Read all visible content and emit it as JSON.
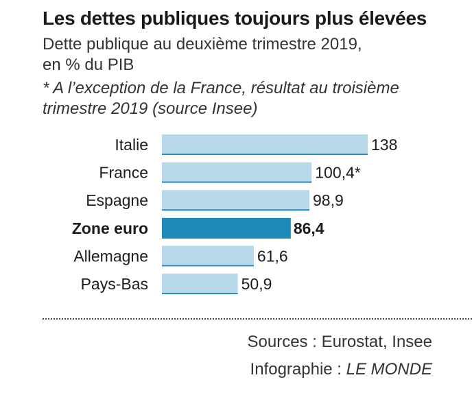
{
  "header": {
    "title": "Les dettes publiques toujours plus élevées",
    "subtitle_line1": "Dette publique au deuxième trimestre 2019,",
    "subtitle_line2": "en % du PIB",
    "note_line1": "* A l’exception de la France, résultat au troisième",
    "note_line2": "trimestre 2019 (source Insee)"
  },
  "chart_data": {
    "type": "bar",
    "orientation": "horizontal",
    "categories": [
      "Italie",
      "France",
      "Espagne",
      "Zone euro",
      "Allemagne",
      "Pays-Bas"
    ],
    "values": [
      138,
      100.4,
      98.9,
      86.4,
      61.6,
      50.9
    ],
    "value_labels": [
      "138",
      "100,4*",
      "98,9",
      "86,4",
      "61,6",
      "50,9"
    ],
    "highlight": "Zone euro",
    "colors": {
      "bar": "#b7d9ea",
      "bar_edge": "#2a8cbd",
      "highlight": "#1d8ab8",
      "text": "#1c1c1c"
    }
  },
  "footer": {
    "sources": "Sources : Eurostat, Insee",
    "credit_prefix": "Infographie : ",
    "credit_brand": "LE MONDE"
  }
}
